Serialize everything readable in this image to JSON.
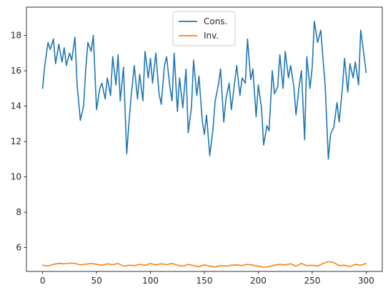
{
  "chart_data": {
    "type": "line",
    "title": "",
    "xlabel": "",
    "ylabel": "",
    "xlim": [
      -15,
      315
    ],
    "ylim": [
      4.65,
      19.6
    ],
    "xticks": [
      0,
      50,
      100,
      150,
      200,
      250,
      300
    ],
    "yticks": [
      6,
      8,
      10,
      12,
      14,
      16,
      18
    ],
    "grid": false,
    "legend_position": "top-center",
    "series": [
      {
        "name": "Cons.",
        "color": "#1f77b4",
        "x": [
          0,
          2,
          5,
          7,
          10,
          12,
          15,
          18,
          20,
          22,
          25,
          27,
          30,
          32,
          35,
          38,
          40,
          42,
          45,
          47,
          50,
          53,
          55,
          58,
          60,
          63,
          65,
          68,
          70,
          72,
          75,
          78,
          80,
          82,
          85,
          88,
          90,
          93,
          95,
          98,
          100,
          102,
          105,
          108,
          110,
          113,
          115,
          118,
          120,
          122,
          125,
          127,
          130,
          133,
          135,
          138,
          140,
          143,
          145,
          148,
          150,
          152,
          155,
          158,
          160,
          163,
          165,
          168,
          170,
          173,
          175,
          178,
          180,
          183,
          185,
          188,
          190,
          193,
          195,
          198,
          200,
          203,
          205,
          208,
          210,
          213,
          215,
          218,
          220,
          223,
          225,
          228,
          230,
          233,
          235,
          238,
          240,
          243,
          245,
          248,
          250,
          252,
          255,
          258,
          260,
          262,
          265,
          267,
          270,
          273,
          275,
          278,
          280,
          283,
          285,
          288,
          290,
          293,
          295,
          298,
          300
        ],
        "values": [
          15.0,
          16.3,
          17.6,
          17.2,
          17.8,
          16.4,
          17.5,
          16.5,
          17.3,
          16.3,
          17.0,
          16.6,
          17.9,
          15.2,
          13.2,
          14.0,
          16.1,
          17.6,
          17.1,
          18.0,
          13.8,
          15.0,
          15.3,
          14.4,
          15.6,
          14.6,
          16.8,
          15.2,
          16.9,
          14.3,
          16.2,
          11.3,
          13.0,
          14.5,
          16.3,
          14.4,
          15.8,
          14.3,
          17.1,
          15.6,
          16.7,
          15.3,
          17.0,
          14.7,
          14.1,
          16.3,
          16.8,
          15.1,
          14.3,
          17.0,
          13.7,
          15.6,
          13.9,
          16.1,
          12.5,
          13.9,
          16.6,
          14.6,
          15.7,
          13.2,
          12.4,
          13.5,
          11.2,
          12.7,
          14.3,
          15.2,
          16.1,
          13.1,
          14.4,
          15.3,
          13.8,
          15.3,
          16.3,
          14.6,
          15.6,
          15.3,
          17.8,
          15.5,
          16.1,
          13.4,
          15.2,
          13.9,
          11.8,
          12.9,
          12.6,
          16.0,
          14.7,
          15.1,
          16.9,
          15.0,
          17.1,
          15.6,
          16.3,
          15.1,
          13.5,
          15.2,
          16.0,
          12.1,
          16.8,
          15.0,
          16.2,
          18.8,
          17.6,
          18.3,
          16.7,
          15.2,
          11.0,
          12.4,
          12.8,
          14.2,
          13.1,
          15.0,
          16.7,
          14.8,
          16.4,
          15.6,
          16.5,
          15.2,
          18.3,
          16.9,
          15.9
        ]
      },
      {
        "name": "Inv.",
        "color": "#ff7f0e",
        "x": [
          0,
          5,
          10,
          15,
          20,
          25,
          30,
          35,
          40,
          45,
          50,
          55,
          60,
          65,
          70,
          75,
          80,
          85,
          90,
          95,
          100,
          105,
          110,
          115,
          120,
          125,
          130,
          135,
          140,
          145,
          150,
          155,
          160,
          165,
          170,
          175,
          180,
          185,
          190,
          195,
          200,
          205,
          210,
          215,
          220,
          225,
          230,
          235,
          240,
          245,
          250,
          255,
          260,
          265,
          270,
          275,
          280,
          285,
          290,
          295,
          300
        ],
        "values": [
          5.0,
          4.96,
          5.05,
          5.1,
          5.08,
          5.12,
          5.1,
          5.02,
          5.06,
          5.1,
          5.05,
          5.0,
          5.08,
          5.03,
          5.1,
          4.95,
          5.0,
          4.98,
          5.05,
          5.0,
          5.1,
          5.02,
          5.08,
          5.04,
          5.1,
          5.0,
          4.95,
          5.05,
          4.98,
          4.92,
          5.02,
          4.95,
          4.9,
          4.98,
          4.95,
          5.0,
          5.02,
          4.98,
          5.05,
          5.0,
          4.95,
          4.88,
          4.92,
          5.0,
          5.05,
          5.02,
          5.08,
          4.95,
          5.1,
          4.98,
          5.0,
          4.95,
          5.1,
          5.2,
          5.15,
          4.98,
          5.0,
          4.92,
          5.05,
          5.0,
          5.1
        ]
      }
    ]
  }
}
